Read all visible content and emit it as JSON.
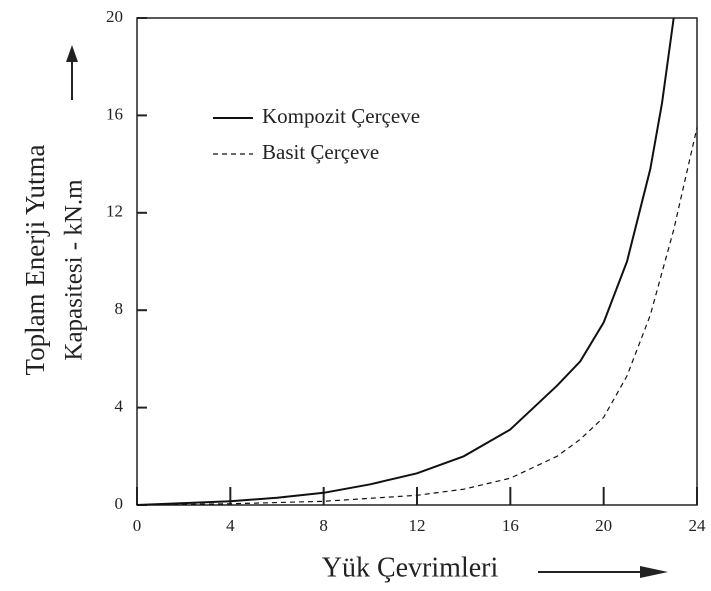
{
  "chart_data": {
    "type": "line",
    "xlabel": "Yük Çevrimleri",
    "ylabel": [
      "Toplam Enerji Yutma",
      "Kapasitesi - kN.m"
    ],
    "xlim": [
      0,
      24
    ],
    "xticks": [
      0,
      4,
      8,
      12,
      16,
      20,
      24
    ],
    "ylim": [
      0,
      20
    ],
    "yticks": [
      0,
      4,
      8,
      12,
      16,
      20
    ],
    "legend": "upper left",
    "series": [
      {
        "name": "Kompozit Çerçeve",
        "color": "#111111",
        "dash": "solid",
        "x": [
          0,
          4,
          6,
          8,
          10,
          12,
          14,
          16,
          18,
          19,
          20,
          21,
          22,
          22.5,
          23
        ],
        "values": [
          0,
          0.15,
          0.3,
          0.5,
          0.85,
          1.3,
          2,
          3.1,
          4.9,
          5.9,
          7.5,
          10,
          13.8,
          16.5,
          20
        ]
      },
      {
        "name": "Basit Çerçeve",
        "color": "#111111",
        "dash": "dashed",
        "x": [
          0,
          4,
          8,
          12,
          14,
          16,
          18,
          19,
          20,
          21,
          22,
          23,
          24
        ],
        "values": [
          0,
          0.05,
          0.15,
          0.4,
          0.65,
          1.1,
          2,
          2.7,
          3.6,
          5.3,
          7.8,
          11.3,
          15.5
        ]
      }
    ]
  }
}
